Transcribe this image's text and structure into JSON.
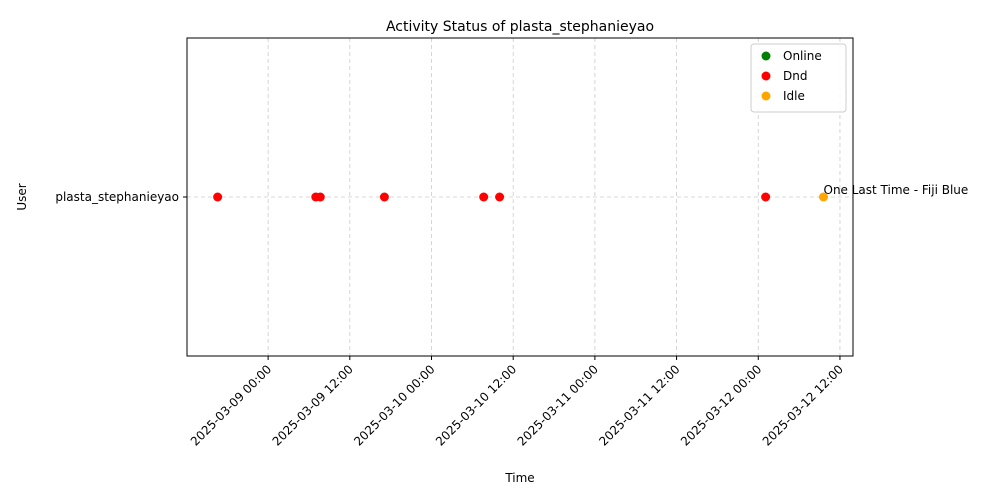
{
  "chart_data": {
    "type": "scatter",
    "title": "Activity Status of plasta_stephanieyao",
    "xlabel": "Time",
    "ylabel": "User",
    "y_categories": [
      "plasta_stephanieyao"
    ],
    "x_ticks": [
      "2025-03-09 00:00",
      "2025-03-09 12:00",
      "2025-03-10 00:00",
      "2025-03-10 12:00",
      "2025-03-11 00:00",
      "2025-03-11 12:00",
      "2025-03-12 00:00",
      "2025-03-12 12:00"
    ],
    "xlim": [
      "2025-03-08 12:05",
      "2025-03-12 13:55"
    ],
    "grid": true,
    "legend_position": "top-right",
    "series": [
      {
        "name": "Online",
        "color": "#008000",
        "points": []
      },
      {
        "name": "Dnd",
        "color": "#ff0000",
        "points": [
          {
            "x": "2025-03-08 16:35",
            "y": "plasta_stephanieyao"
          },
          {
            "x": "2025-03-09 07:00",
            "y": "plasta_stephanieyao"
          },
          {
            "x": "2025-03-09 07:40",
            "y": "plasta_stephanieyao"
          },
          {
            "x": "2025-03-09 17:05",
            "y": "plasta_stephanieyao"
          },
          {
            "x": "2025-03-10 07:40",
            "y": "plasta_stephanieyao"
          },
          {
            "x": "2025-03-10 10:00",
            "y": "plasta_stephanieyao"
          },
          {
            "x": "2025-03-12 01:05",
            "y": "plasta_stephanieyao"
          }
        ]
      },
      {
        "name": "Idle",
        "color": "#ffa500",
        "points": [
          {
            "x": "2025-03-12 09:35",
            "y": "plasta_stephanieyao"
          }
        ]
      }
    ],
    "annotations": [
      {
        "x": "2025-03-12 09:35",
        "y": "plasta_stephanieyao",
        "text": "One Last Time - Fiji Blue"
      }
    ]
  }
}
